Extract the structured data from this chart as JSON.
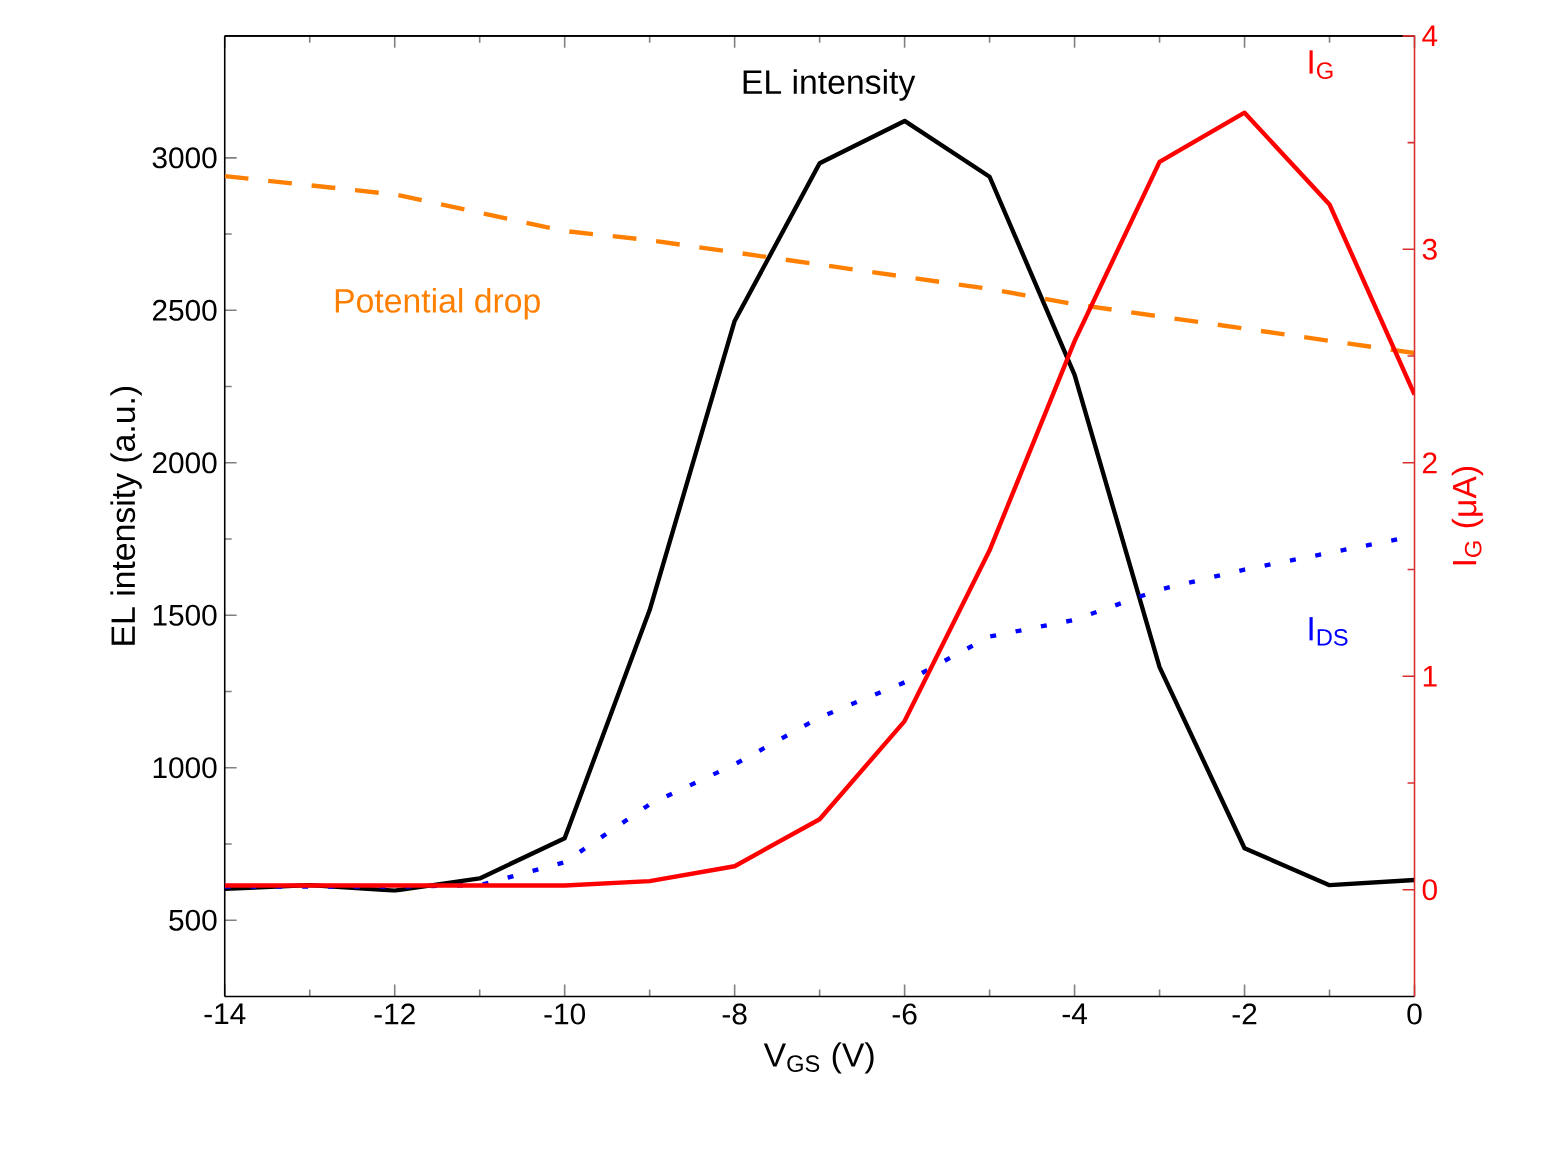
{
  "chart_data": {
    "type": "line",
    "xlabel": "V$_{GS}$ (V)",
    "ylabel": "EL intensity (a.u.)",
    "y2label": "I$_{G}$ (μA)",
    "x": [
      -14,
      -13,
      -12,
      -11,
      -10,
      -9,
      -8,
      -7,
      -6,
      -5,
      -4,
      -3,
      -2,
      -1,
      0
    ],
    "xlim": [
      -14,
      0
    ],
    "xticks": [
      -14,
      -12,
      -10,
      -8,
      -6,
      -4,
      -2,
      0
    ],
    "ylim": [
      250,
      3400
    ],
    "yticks": [
      500,
      1000,
      1500,
      2000,
      2500,
      3000
    ],
    "y2lim": [
      -0.5,
      4
    ],
    "y2ticks": [
      0,
      1,
      2,
      3,
      4
    ],
    "grid": false,
    "marker": "none",
    "series": [
      {
        "name": "EL intensity",
        "color": "#000000",
        "line_style": "solid",
        "values": [
          603,
          615,
          597,
          637,
          769,
          1517,
          2465,
          2982,
          3121,
          2938,
          2288,
          1330,
          736,
          615,
          632
        ]
      },
      {
        "name": "I$_{G}$",
        "color": "#ff0000",
        "line_style": "solid",
        "axis": "y2",
        "values": [
          0.02,
          0.02,
          0.02,
          0.02,
          0.02,
          0.04,
          0.11,
          0.33,
          0.79,
          1.59,
          2.57,
          3.41,
          3.64,
          3.21,
          2.32
        ]
      },
      {
        "name": "Potential drop",
        "color": "#ff8000",
        "line_style": "dashed",
        "values": [
          2940,
          2910,
          2880,
          2820,
          2760,
          2730,
          2690,
          2650,
          2610,
          2570,
          2520,
          2480,
          2440,
          2400,
          2360
        ]
      },
      {
        "name": "I$_{DS}$",
        "color": "#0000ff",
        "line_style": "dotted",
        "values": [
          610,
          610,
          610,
          615,
          690,
          880,
          1011,
          1165,
          1280,
          1430,
          1485,
          1584,
          1650,
          1705,
          1760
        ]
      }
    ]
  }
}
